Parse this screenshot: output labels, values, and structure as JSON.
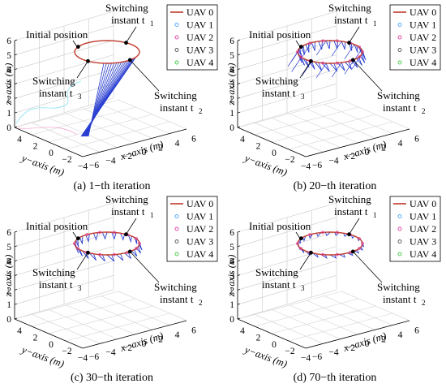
{
  "figure": {
    "panels": [
      {
        "caption": "(a) 1−th iteration",
        "legend": [
          "UAV 0",
          "UAV 1",
          "UAV 2",
          "UAV 3",
          "UAV 4"
        ],
        "annotations": {
          "initial": "Initial position",
          "switching_line1": "Switching",
          "instant_t1": "instant t",
          "instant_t2": "instant t",
          "instant_t3": "instant t",
          "sub1": "1",
          "sub2": "2",
          "sub3": "3"
        },
        "axis_titles": {
          "x": "x−axis (m)",
          "y": "y−axis (m)",
          "z": "z−axis (m)"
        },
        "x_ticks": [
          "−6",
          "−4",
          "−2",
          "0",
          "2",
          "4",
          "6"
        ],
        "y_ticks": [
          "−4",
          "−2",
          "0",
          "2",
          "4"
        ],
        "z_ticks": [
          "0",
          "1",
          "2",
          "3",
          "4",
          "5",
          "6"
        ]
      },
      {
        "caption": "(b) 20−th iteration",
        "legend": [
          "UAV 0",
          "UAV 1",
          "UAV 2",
          "UAV 3",
          "UAV 4"
        ],
        "annotations": {
          "initial": "Initial position",
          "switching_line1": "Switching",
          "instant_t1": "instant t",
          "instant_t2": "instant t",
          "instant_t3": "instant t",
          "sub1": "1",
          "sub2": "2",
          "sub3": "3"
        },
        "axis_titles": {
          "x": "x−axis (m)",
          "y": "y−axis (m)",
          "z": "z−axis (m)"
        },
        "x_ticks": [
          "−6",
          "−4",
          "−2",
          "0",
          "2",
          "4",
          "6"
        ],
        "y_ticks": [
          "−4",
          "−2",
          "0",
          "2",
          "4"
        ],
        "z_ticks": [
          "0",
          "1",
          "2",
          "3",
          "4",
          "5",
          "6"
        ]
      },
      {
        "caption": "(c) 30−th iteration",
        "legend": [
          "UAV 0",
          "UAV 1",
          "UAV 2",
          "UAV 3",
          "UAV 4"
        ],
        "annotations": {
          "initial": "Initial position",
          "switching_line1": "Switching",
          "instant_t1": "instant t",
          "instant_t2": "instant t",
          "instant_t3": "instant t",
          "sub1": "1",
          "sub2": "2",
          "sub3": "3"
        },
        "axis_titles": {
          "x": "x−axis (m)",
          "y": "y−axis (m)",
          "z": "z−axis (m)"
        },
        "x_ticks": [
          "−6",
          "−4",
          "−2",
          "0",
          "2",
          "4",
          "6"
        ],
        "y_ticks": [
          "−4",
          "−2",
          "0",
          "2",
          "4"
        ],
        "z_ticks": [
          "0",
          "1",
          "2",
          "3",
          "4",
          "5",
          "6"
        ]
      },
      {
        "caption": "(d) 70−th iteration",
        "legend": [
          "UAV 0",
          "UAV 1",
          "UAV 2",
          "UAV 3",
          "UAV 4"
        ],
        "annotations": {
          "initial": "Initial position",
          "switching_line1": "Switching",
          "instant_t1": "instant t",
          "instant_t2": "instant t",
          "instant_t3": "instant t",
          "sub1": "1",
          "sub2": "2",
          "sub3": "3"
        },
        "axis_titles": {
          "x": "x−axis (m)",
          "y": "y−axis (m)",
          "z": "z−axis (m)"
        },
        "x_ticks": [
          "−6",
          "−4",
          "−2",
          "0",
          "2",
          "4",
          "6"
        ],
        "y_ticks": [
          "−4",
          "−2",
          "0",
          "2",
          "4"
        ],
        "z_ticks": [
          "0",
          "1",
          "2",
          "3",
          "4",
          "5",
          "6"
        ]
      }
    ]
  },
  "chart_data": [
    {
      "type": "line3d",
      "title": "(a) 1−th iteration",
      "xlabel": "x−axis (m)",
      "ylabel": "y−axis (m)",
      "zlabel": "z−axis (m)",
      "xlim": [
        -6,
        6
      ],
      "ylim": [
        -4,
        4
      ],
      "zlim": [
        0,
        6
      ],
      "grid": true,
      "legend": "top-right",
      "series": [
        {
          "name": "UAV 0",
          "color": "#c0392b",
          "marker": "line",
          "x": [
            0,
            3.5,
            0,
            -3.5,
            0
          ],
          "y": [
            0,
            2.5,
            4,
            2.5,
            0
          ],
          "z": [
            5,
            5,
            5,
            5,
            5
          ]
        },
        {
          "name": "UAV 1",
          "color": "#4da6ff",
          "marker": "o"
        },
        {
          "name": "UAV 2",
          "color": "#e040a0",
          "marker": "*"
        },
        {
          "name": "UAV 3",
          "color": "#555555",
          "marker": "v"
        },
        {
          "name": "UAV 4",
          "color": "#44cc44",
          "marker": "<"
        }
      ],
      "key_points": [
        "Initial position",
        "Switching instant t1",
        "Switching instant t2",
        "Switching instant t3"
      ]
    },
    {
      "type": "line3d",
      "title": "(b) 20−th iteration",
      "xlabel": "x−axis (m)",
      "ylabel": "y−axis (m)",
      "zlabel": "z−axis (m)",
      "xlim": [
        -6,
        6
      ],
      "ylim": [
        -4,
        4
      ],
      "zlim": [
        0,
        6
      ],
      "grid": true,
      "legend": "top-right",
      "series": [
        {
          "name": "UAV 0",
          "color": "#c0392b"
        },
        {
          "name": "UAV 1",
          "color": "#4da6ff"
        },
        {
          "name": "UAV 2",
          "color": "#e040a0"
        },
        {
          "name": "UAV 3",
          "color": "#555555"
        },
        {
          "name": "UAV 4",
          "color": "#44cc44"
        }
      ]
    },
    {
      "type": "line3d",
      "title": "(c) 30−th iteration",
      "xlabel": "x−axis (m)",
      "ylabel": "y−axis (m)",
      "zlabel": "z−axis (m)",
      "xlim": [
        -6,
        6
      ],
      "ylim": [
        -4,
        4
      ],
      "zlim": [
        0,
        6
      ],
      "grid": true,
      "legend": "top-right",
      "series": [
        {
          "name": "UAV 0",
          "color": "#c0392b"
        },
        {
          "name": "UAV 1",
          "color": "#4da6ff"
        },
        {
          "name": "UAV 2",
          "color": "#e040a0"
        },
        {
          "name": "UAV 3",
          "color": "#555555"
        },
        {
          "name": "UAV 4",
          "color": "#44cc44"
        }
      ]
    },
    {
      "type": "line3d",
      "title": "(d) 70−th iteration",
      "xlabel": "x−axis (m)",
      "ylabel": "y−axis (m)",
      "zlabel": "z−axis (m)",
      "xlim": [
        -6,
        6
      ],
      "ylim": [
        -4,
        4
      ],
      "zlim": [
        0,
        6
      ],
      "grid": true,
      "legend": "top-right",
      "series": [
        {
          "name": "UAV 0",
          "color": "#c0392b"
        },
        {
          "name": "UAV 1",
          "color": "#4da6ff"
        },
        {
          "name": "UAV 2",
          "color": "#e040a0"
        },
        {
          "name": "UAV 3",
          "color": "#555555"
        },
        {
          "name": "UAV 4",
          "color": "#44cc44"
        }
      ]
    }
  ]
}
